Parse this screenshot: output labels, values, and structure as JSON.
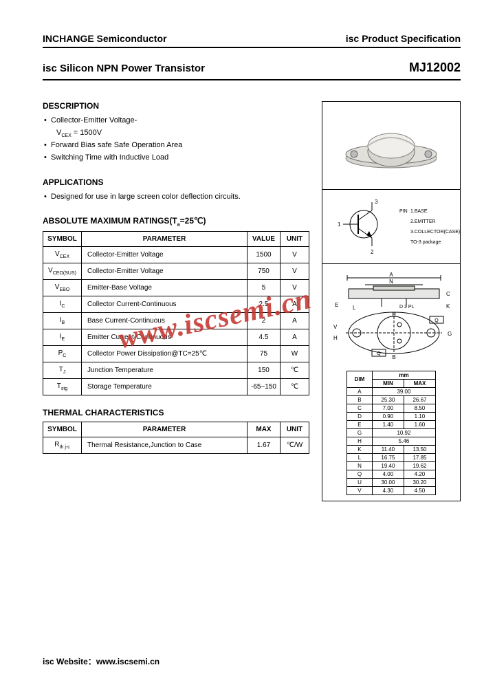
{
  "header": {
    "company": "INCHANGE Semiconductor",
    "doc_type": "isc Product Specification"
  },
  "title": {
    "product_line": "isc Silicon NPN Power Transistor",
    "part_number": "MJ12002"
  },
  "description": {
    "heading": "DESCRIPTION",
    "items": [
      {
        "text": "Collector-Emitter Voltage-",
        "sub": "V",
        "sub_sub": "CEX",
        "sub_rest": " = 1500V"
      },
      {
        "text": "Forward Bias safe Safe Operation Area"
      },
      {
        "text": "Switching Time with Inductive Load"
      }
    ]
  },
  "applications": {
    "heading": "APPLICATIONS",
    "items": [
      "Designed for use in large screen color deflection circuits."
    ]
  },
  "ratings": {
    "heading": "ABSOLUTE MAXIMUM RATINGS(T",
    "heading_sub": "a",
    "heading_rest": "=25℃)",
    "columns": [
      "SYMBOL",
      "PARAMETER",
      "VALUE",
      "UNIT"
    ],
    "rows": [
      {
        "sym": "V",
        "sub": "CEX",
        "param": "Collector-Emitter Voltage",
        "value": "1500",
        "unit": "V"
      },
      {
        "sym": "V",
        "sub": "CEO(SUS)",
        "param": "Collector-Emitter Voltage",
        "value": "750",
        "unit": "V"
      },
      {
        "sym": "V",
        "sub": "EBO",
        "param": "Emitter-Base Voltage",
        "value": "5",
        "unit": "V"
      },
      {
        "sym": "I",
        "sub": "C",
        "param": "Collector Current-Continuous",
        "value": "2.5",
        "unit": "A"
      },
      {
        "sym": "I",
        "sub": "B",
        "param": "Base Current-Continuous",
        "value": "2",
        "unit": "A"
      },
      {
        "sym": "I",
        "sub": "E",
        "param": "Emitter Current-Continuous",
        "value": "4.5",
        "unit": "A"
      },
      {
        "sym": "P",
        "sub": "C",
        "param": "Collector Power Dissipation@TC=25℃",
        "value": "75",
        "unit": "W"
      },
      {
        "sym": "T",
        "sub": "J",
        "param": "Junction Temperature",
        "value": "150",
        "unit": "℃"
      },
      {
        "sym": "T",
        "sub": "stg",
        "param": "Storage Temperature",
        "value": "-65~150",
        "unit": "℃"
      }
    ]
  },
  "thermal": {
    "heading": "THERMAL CHARACTERISTICS",
    "columns": [
      "SYMBOL",
      "PARAMETER",
      "MAX",
      "UNIT"
    ],
    "rows": [
      {
        "sym": "R",
        "sub": "th j-c",
        "param": "Thermal Resistance,Junction to Case",
        "value": "1.67",
        "unit": "℃/W"
      }
    ]
  },
  "pinout": {
    "labels": [
      "3",
      "1",
      "2"
    ],
    "legend_title": "PIN",
    "legend": [
      "1.BASE",
      "2.EMITTER",
      "3.COLLECTOR(CASE)",
      "TO-3 package"
    ]
  },
  "dimensions": {
    "header_mm": "mm",
    "columns": [
      "DIM",
      "MIN",
      "MAX"
    ],
    "rows": [
      {
        "dim": "A",
        "min": "39.00",
        "max": "",
        "span": true
      },
      {
        "dim": "B",
        "min": "25.30",
        "max": "26.67"
      },
      {
        "dim": "C",
        "min": "7.00",
        "max": "8.50"
      },
      {
        "dim": "D",
        "min": "0.90",
        "max": "1.10"
      },
      {
        "dim": "E",
        "min": "1.40",
        "max": "1.60"
      },
      {
        "dim": "G",
        "min": "10.92",
        "max": "",
        "span": true
      },
      {
        "dim": "H",
        "min": "5.46",
        "max": "",
        "span": true
      },
      {
        "dim": "K",
        "min": "11.40",
        "max": "13.50"
      },
      {
        "dim": "L",
        "min": "16.75",
        "max": "17.85"
      },
      {
        "dim": "N",
        "min": "19.40",
        "max": "19.62"
      },
      {
        "dim": "Q",
        "min": "4.00",
        "max": "4.20"
      },
      {
        "dim": "U",
        "min": "30.00",
        "max": "30.20"
      },
      {
        "dim": "V",
        "min": "4.30",
        "max": "4.50"
      }
    ],
    "drawing_labels": [
      "A",
      "N",
      "C",
      "E",
      "L",
      "D 2 PL",
      "U",
      "K",
      "V",
      "H",
      "G",
      "B",
      "Q",
      "Q"
    ]
  },
  "watermark": "www.iscsemi.cn",
  "footer": {
    "label": "isc Website：",
    "url": "www.iscsemi.cn"
  },
  "colors": {
    "text": "#000000",
    "watermark": "#c6352f",
    "background": "#ffffff",
    "rule": "#000000",
    "package_fill": "#d8d6d0",
    "package_highlight": "#f0efeb"
  }
}
